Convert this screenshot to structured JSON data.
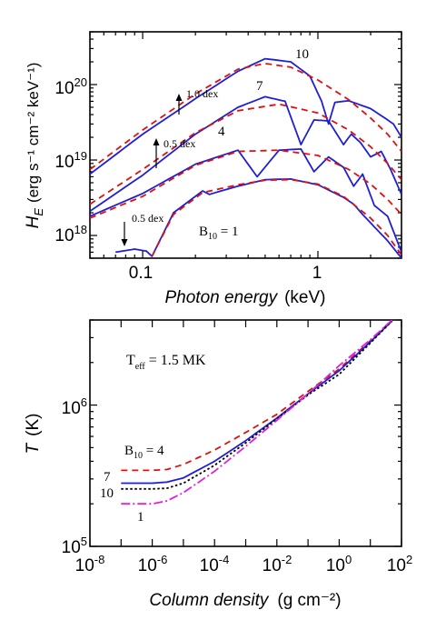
{
  "chart_data": [
    {
      "type": "line",
      "ylabel_prefix": "H",
      "ylabel_sub": "E",
      "ylabel_units": "(erg s⁻¹ cm⁻² keV⁻¹)",
      "xlabel": "Photon energy",
      "xlabel_units": "(keV)",
      "x_scale": "log",
      "y_scale": "log",
      "xlim": [
        0.05,
        3.0
      ],
      "ylim": [
        5e+17,
        5e+20
      ],
      "x_ticks": [
        {
          "value": 0.1,
          "label": "0.1"
        },
        {
          "value": 1,
          "label": "1"
        }
      ],
      "y_ticks": [
        {
          "value": 1e+18,
          "base": "10",
          "exp": "18"
        },
        {
          "value": 1e+19,
          "base": "10",
          "exp": "19"
        },
        {
          "value": 1e+20,
          "base": "10",
          "exp": "20"
        }
      ],
      "annotations": {
        "curve_labels": [
          "10",
          "7",
          "4"
        ],
        "b_label": "B",
        "b_sub": "10",
        "b_value": " = 1",
        "shifts": [
          "1.0 dex",
          "0.5 dex",
          "0.5 dex"
        ]
      },
      "series": [
        {
          "curve": "10",
          "style": "solid",
          "color": "#1f1fd6",
          "x": [
            0.05,
            0.1,
            0.2,
            0.35,
            0.5,
            0.7,
            0.9,
            1.05,
            1.15,
            1.25,
            1.5,
            2.0,
            2.5,
            2.7,
            3.0
          ],
          "y": [
            6.5e+18,
            2.2e+19,
            6.5e+19,
            1.5e+20,
            2.2e+20,
            2e+20,
            1.3e+20,
            6e+19,
            3e+19,
            5.8e+19,
            6.1e+19,
            4.8e+19,
            3.4e+19,
            3e+19,
            2e+19
          ]
        },
        {
          "curve": "10",
          "style": "dashed",
          "color": "#e01010",
          "x": [
            0.05,
            0.1,
            0.2,
            0.35,
            0.5,
            0.7,
            1.0,
            1.5,
            2.0,
            2.5,
            3.0
          ],
          "y": [
            7.5e+18,
            2.5e+19,
            7.5e+19,
            1.6e+20,
            1.9e+20,
            1.7e+20,
            1.15e+20,
            6.3e+19,
            3.6e+19,
            2.2e+19,
            1.3e+19
          ]
        },
        {
          "curve": "7",
          "style": "solid",
          "color": "#1f1fd6",
          "x": [
            0.05,
            0.1,
            0.2,
            0.35,
            0.5,
            0.65,
            0.8,
            0.95,
            1.15,
            1.4,
            1.55,
            1.75,
            2.0,
            2.3,
            2.6,
            3.0
          ],
          "y": [
            2.1e+18,
            6.3e+18,
            2.2e+19,
            5e+19,
            6.9e+19,
            6e+19,
            1.6e+19,
            3.4e+19,
            3.3e+19,
            1.6e+19,
            2.2e+19,
            1.7e+19,
            1.1e+19,
            1.3e+19,
            7.5e+18,
            3.5e+18
          ]
        },
        {
          "curve": "7",
          "style": "dashed",
          "color": "#e01010",
          "x": [
            0.05,
            0.1,
            0.2,
            0.35,
            0.6,
            1.0,
            1.5,
            2.0,
            2.5,
            3.0
          ],
          "y": [
            2.6e+18,
            7.5e+18,
            2.3e+19,
            4.5e+19,
            5.5e+19,
            4.2e+19,
            2.5e+19,
            1.5e+19,
            9e+18,
            5.5e+18
          ]
        },
        {
          "curve": "4",
          "style": "solid",
          "color": "#1f1fd6",
          "x": [
            0.05,
            0.1,
            0.2,
            0.35,
            0.45,
            0.6,
            0.8,
            0.95,
            1.15,
            1.4,
            1.6,
            1.8,
            2.1,
            2.5,
            3.0
          ],
          "y": [
            1.8e+18,
            3.6e+18,
            8.8e+18,
            1.35e+19,
            6e+18,
            1.35e+19,
            1.4e+19,
            7e+18,
            1.1e+19,
            8e+18,
            4.5e+18,
            6.5e+18,
            2.5e+18,
            1.8e+18,
            6e+17
          ]
        },
        {
          "curve": "4",
          "style": "dashed",
          "color": "#e01010",
          "x": [
            0.05,
            0.1,
            0.2,
            0.35,
            0.6,
            1.0,
            1.5,
            2.0,
            2.5,
            3.0
          ],
          "y": [
            1.7e+18,
            3.3e+18,
            8.5e+18,
            1.3e+19,
            1.35e+19,
            1.15e+19,
            7.5e+18,
            4.8e+18,
            3e+18,
            1.9e+18
          ]
        },
        {
          "curve": "1",
          "style": "solid",
          "color": "#1f1fd6",
          "x": [
            0.07,
            0.09,
            0.105,
            0.113,
            0.15,
            0.22,
            0.24,
            0.35,
            0.5,
            0.7,
            1.0,
            1.4,
            1.6,
            1.8,
            2.1,
            2.5,
            3.0
          ],
          "y": [
            6e+17,
            6.6e+17,
            6.2e+17,
            5.3e+17,
            2e+18,
            3.9e+18,
            3.5e+18,
            4.5e+18,
            5.5e+18,
            5.6e+18,
            4.7e+18,
            3.2e+18,
            2.6e+18,
            1.9e+18,
            1.3e+18,
            8.5e+17,
            5e+17
          ]
        },
        {
          "curve": "1",
          "style": "dashed",
          "color": "#e01010",
          "x": [
            0.113,
            0.15,
            0.22,
            0.35,
            0.5,
            0.7,
            1.0,
            1.4,
            2.0,
            2.5,
            3.0
          ],
          "y": [
            5.3e+17,
            1.9e+18,
            3.7e+18,
            4.7e+18,
            5.4e+18,
            5.5e+18,
            4.8e+18,
            3.3e+18,
            1.7e+18,
            1e+18,
            5.5e+17
          ]
        }
      ]
    },
    {
      "type": "line",
      "ylabel": "T",
      "ylabel_units": "(K)",
      "xlabel": "Column density",
      "xlabel_units": "(g cm⁻²)",
      "x_scale": "log",
      "y_scale": "log",
      "xlim": [
        1e-08,
        100.0
      ],
      "ylim": [
        100000.0,
        4000000.0
      ],
      "x_ticks": [
        {
          "value": 1e-08,
          "base": "10",
          "exp": "-8"
        },
        {
          "value": 1e-06,
          "base": "10",
          "exp": "-6"
        },
        {
          "value": 0.0001,
          "base": "10",
          "exp": "-4"
        },
        {
          "value": 0.01,
          "base": "10",
          "exp": "-2"
        },
        {
          "value": 1.0,
          "base": "10",
          "exp": "0"
        },
        {
          "value": 100.0,
          "base": "10",
          "exp": "2"
        }
      ],
      "y_ticks": [
        {
          "value": 100000.0,
          "base": "10",
          "exp": "5"
        },
        {
          "value": 1000000.0,
          "base": "10",
          "exp": "6"
        }
      ],
      "annotations": {
        "teff_label": "T",
        "teff_sub": "eff",
        "teff_value": " = 1.5 MK",
        "b_label": "B",
        "b_sub": "10",
        "b_value": " = 4",
        "line_labels": [
          "7",
          "10",
          "1"
        ]
      },
      "series": [
        {
          "curve": "4",
          "style": "dashed",
          "color": "#e01010",
          "x": [
            1e-07,
            1e-06,
            3e-06,
            1e-05,
            0.0001,
            0.001,
            0.01,
            0.1,
            1,
            10,
            50
          ],
          "y": [
            345000,
            345000,
            350000,
            380000,
            480000,
            640000,
            860000,
            1250000,
            1800000,
            2850000,
            4000000
          ]
        },
        {
          "curve": "7",
          "style": "solid",
          "color": "#1f1fd6",
          "x": [
            1e-07,
            1e-06,
            3e-06,
            1e-05,
            0.0001,
            0.001,
            0.01,
            0.1,
            1,
            10,
            50
          ],
          "y": [
            280000,
            280000,
            285000,
            305000,
            400000,
            560000,
            810000,
            1200000,
            1750000,
            2800000,
            3950000
          ]
        },
        {
          "curve": "10",
          "style": "dotted",
          "color": "#000000",
          "x": [
            1e-07,
            1e-06,
            3e-06,
            1e-05,
            0.0001,
            0.001,
            0.01,
            0.1,
            1,
            10,
            50
          ],
          "y": [
            255000,
            255000,
            258000,
            280000,
            375000,
            540000,
            800000,
            1180000,
            1650000,
            2750000,
            3950000
          ]
        },
        {
          "curve": "1",
          "style": "dash-dot",
          "color": "#e020e0",
          "x": [
            1e-07,
            1e-06,
            3e-06,
            1e-05,
            0.0001,
            0.001,
            0.01,
            0.1,
            1,
            10,
            50
          ],
          "y": [
            200000,
            200000,
            210000,
            240000,
            340000,
            510000,
            780000,
            1200000,
            1900000,
            2900000,
            4000000
          ]
        }
      ]
    }
  ]
}
